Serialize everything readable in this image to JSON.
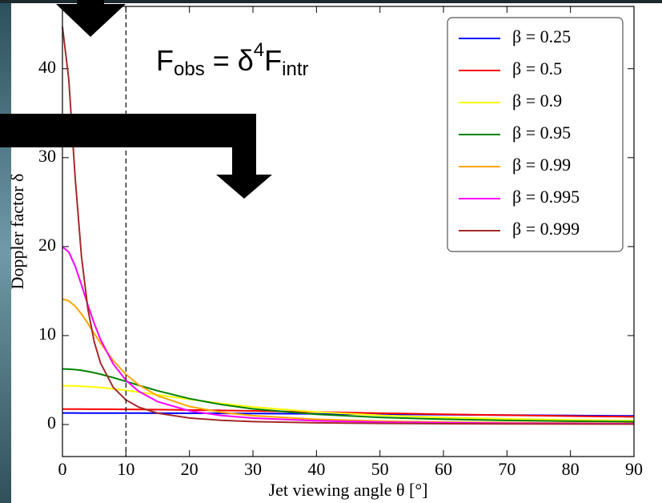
{
  "chart_data": {
    "type": "line",
    "xlabel": "Jet viewing angle θ [°]",
    "ylabel": "Doppler factor δ",
    "formula": {
      "base1": "F",
      "sub1": "obs",
      "mid": " = δ",
      "sup": "4",
      "base2": "F",
      "sub2": "intr"
    },
    "vline": 10,
    "x": [
      0,
      1,
      2,
      3,
      4,
      5,
      6,
      8,
      10,
      12,
      15,
      20,
      25,
      30,
      40,
      50,
      60,
      70,
      80,
      90
    ],
    "series": [
      {
        "name": "β = 0.25",
        "color": "#0000ff",
        "values": [
          1.291,
          1.291,
          1.291,
          1.29,
          1.29,
          1.289,
          1.289,
          1.287,
          1.284,
          1.282,
          1.276,
          1.266,
          1.252,
          1.236,
          1.198,
          1.154,
          1.107,
          1.059,
          1.012,
          0.968
        ]
      },
      {
        "name": "β = 0.5",
        "color": "#ff0000",
        "values": [
          1.732,
          1.732,
          1.731,
          1.73,
          1.728,
          1.726,
          1.723,
          1.715,
          1.706,
          1.695,
          1.675,
          1.634,
          1.584,
          1.527,
          1.404,
          1.276,
          1.155,
          1.045,
          0.948,
          0.866
        ]
      },
      {
        "name": "β = 0.9",
        "color": "#ffff00",
        "values": [
          4.359,
          4.353,
          4.335,
          4.306,
          4.265,
          4.214,
          4.154,
          4.008,
          3.835,
          3.643,
          3.336,
          2.825,
          2.365,
          1.976,
          1.404,
          1.034,
          0.793,
          0.63,
          0.517,
          0.436
        ]
      },
      {
        "name": "β = 0.95",
        "color": "#008000",
        "values": [
          6.245,
          6.227,
          6.174,
          6.087,
          5.968,
          5.823,
          5.656,
          5.271,
          4.846,
          4.413,
          3.791,
          2.91,
          2.246,
          1.761,
          1.147,
          0.802,
          0.595,
          0.463,
          0.374,
          0.312
        ]
      },
      {
        "name": "β = 0.99",
        "color": "#ffa500",
        "values": [
          14.107,
          13.9,
          13.3,
          12.42,
          11.36,
          10.24,
          9.145,
          7.185,
          5.634,
          4.46,
          3.226,
          2.024,
          1.373,
          0.989,
          0.584,
          0.388,
          0.279,
          0.213,
          0.17,
          0.141
        ]
      },
      {
        "name": "β = 0.995",
        "color": "#ff00ff",
        "values": [
          19.975,
          19.397,
          17.813,
          15.696,
          13.446,
          11.361,
          9.555,
          6.803,
          4.966,
          3.735,
          2.567,
          1.536,
          1.017,
          0.722,
          0.42,
          0.277,
          0.199,
          0.151,
          0.121,
          0.0999
        ]
      },
      {
        "name": "β = 0.999",
        "color": "#a52a2a",
        "values": [
          44.71,
          38.8,
          27.79,
          18.87,
          13.02,
          9.312,
          6.908,
          4.17,
          2.764,
          1.958,
          1.276,
          0.73,
          0.473,
          0.332,
          0.19,
          0.125,
          0.0893,
          0.0679,
          0.0541,
          0.0447
        ]
      }
    ],
    "xlim": [
      0,
      90
    ],
    "xticks": [
      0,
      10,
      20,
      30,
      40,
      50,
      60,
      70,
      80,
      90
    ],
    "ylim": [
      -3.6,
      47
    ],
    "yticks": [
      0,
      10,
      20,
      30,
      40
    ],
    "grid": false,
    "legend": "upper right"
  }
}
